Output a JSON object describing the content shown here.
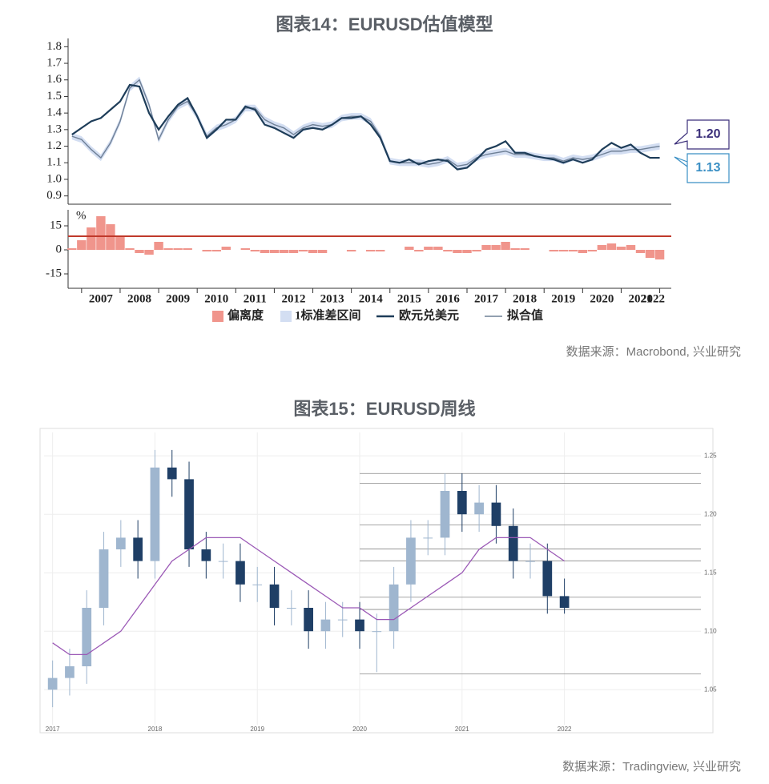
{
  "chart_data": [
    {
      "type": "line",
      "title": "图表14：EURUSD估值模型",
      "source": "数据来源：Macrobond, 兴业研究",
      "x": [
        2006.75,
        2007,
        2007.25,
        2007.5,
        2007.75,
        2008,
        2008.25,
        2008.5,
        2008.75,
        2009,
        2009.25,
        2009.5,
        2009.75,
        2010,
        2010.25,
        2010.5,
        2010.75,
        2011,
        2011.25,
        2011.5,
        2011.75,
        2012,
        2012.25,
        2012.5,
        2012.75,
        2013,
        2013.25,
        2013.5,
        2013.75,
        2014,
        2014.25,
        2014.5,
        2014.75,
        2015,
        2015.25,
        2015.5,
        2015.75,
        2016,
        2016.25,
        2016.5,
        2016.75,
        2017,
        2017.25,
        2017.5,
        2017.75,
        2018,
        2018.25,
        2018.5,
        2018.75,
        2019,
        2019.25,
        2019.5,
        2019.75,
        2020,
        2020.25,
        2020.5,
        2020.75,
        2021,
        2021.25,
        2021.5,
        2021.75,
        2022
      ],
      "xlim": [
        2006.65,
        2022.3
      ],
      "xticks": [
        2007,
        2008,
        2009,
        2010,
        2011,
        2012,
        2013,
        2014,
        2015,
        2016,
        2017,
        2018,
        2019,
        2020,
        2021,
        2022
      ],
      "ylim": [
        0.85,
        1.85
      ],
      "yticks": [
        0.9,
        {
          "value": 1,
          "label": "1.0"
        },
        1.1,
        1.2,
        1.3,
        1.4,
        1.5,
        1.6,
        1.7,
        1.8
      ],
      "band": {
        "name": "1标准差区间",
        "color": "#d3def2",
        "width": 0.02
      },
      "series": [
        {
          "name": "欧元兑美元",
          "color": "#1e3d59",
          "end_label": "1.13",
          "values": [
            1.27,
            1.31,
            1.35,
            1.37,
            1.42,
            1.47,
            1.57,
            1.56,
            1.4,
            1.3,
            1.38,
            1.45,
            1.49,
            1.38,
            1.25,
            1.3,
            1.36,
            1.36,
            1.44,
            1.42,
            1.33,
            1.31,
            1.28,
            1.25,
            1.3,
            1.31,
            1.3,
            1.33,
            1.37,
            1.37,
            1.38,
            1.33,
            1.25,
            1.11,
            1.1,
            1.12,
            1.09,
            1.11,
            1.12,
            1.11,
            1.06,
            1.07,
            1.12,
            1.18,
            1.2,
            1.23,
            1.16,
            1.16,
            1.14,
            1.13,
            1.12,
            1.1,
            1.12,
            1.1,
            1.12,
            1.18,
            1.22,
            1.19,
            1.21,
            1.16,
            1.13,
            1.13
          ]
        },
        {
          "name": "拟合值",
          "color": "#6f8096",
          "end_label": "1.20",
          "values": [
            1.26,
            1.24,
            1.18,
            1.13,
            1.22,
            1.35,
            1.55,
            1.6,
            1.45,
            1.24,
            1.36,
            1.44,
            1.47,
            1.38,
            1.26,
            1.31,
            1.33,
            1.36,
            1.43,
            1.43,
            1.36,
            1.33,
            1.31,
            1.27,
            1.31,
            1.33,
            1.32,
            1.33,
            1.37,
            1.38,
            1.38,
            1.35,
            1.26,
            1.11,
            1.1,
            1.1,
            1.1,
            1.09,
            1.1,
            1.12,
            1.08,
            1.09,
            1.13,
            1.15,
            1.16,
            1.17,
            1.15,
            1.15,
            1.14,
            1.13,
            1.13,
            1.11,
            1.13,
            1.12,
            1.13,
            1.15,
            1.17,
            1.17,
            1.18,
            1.18,
            1.19,
            1.2
          ]
        }
      ]
    },
    {
      "type": "bar",
      "name": "偏离度",
      "color": "#f0958c",
      "y_label": "%",
      "ylim": [
        -20,
        25
      ],
      "yticks": [
        -15,
        0,
        15
      ],
      "threshold": 8.5,
      "threshold_color": "#c0392b",
      "values": [
        1,
        6,
        14,
        21,
        16,
        9,
        1,
        -2,
        -3,
        5,
        1,
        1,
        1,
        0,
        -1,
        -1,
        2,
        0,
        1,
        -1,
        -2,
        -2,
        -2,
        -2,
        -1,
        -2,
        -2,
        0,
        0,
        -1,
        0,
        -1,
        -1,
        0,
        0,
        2,
        -1,
        2,
        2,
        -1,
        -2,
        -2,
        -1,
        3,
        3,
        5,
        1,
        1,
        0,
        0,
        -1,
        -1,
        -1,
        -2,
        -1,
        3,
        4,
        2,
        3,
        -2,
        -5,
        -6
      ]
    },
    {
      "type": "candlestick",
      "title": "图表15：EURUSD周线",
      "source": "数据来源：Tradingview, 兴业研究",
      "categories": [
        "2017",
        null,
        null,
        null,
        null,
        null,
        "2018",
        null,
        null,
        null,
        null,
        null,
        "2019",
        null,
        null,
        null,
        null,
        null,
        "2020",
        null,
        null,
        null,
        null,
        null,
        "2021",
        null,
        null,
        null,
        null,
        null,
        "2022"
      ],
      "xlim": [
        -0.5,
        38
      ],
      "ylim": [
        1.02,
        1.27
      ],
      "yticks": [
        1.05,
        {
          "value": 1.1,
          "label": "1.10"
        },
        1.15,
        {
          "value": 1.2,
          "label": "1.20"
        },
        1.25
      ],
      "up_color": "#9fb6cf",
      "down_color": "#1f3f66",
      "open": [
        1.05,
        1.06,
        1.07,
        1.12,
        1.17,
        1.18,
        1.16,
        1.24,
        1.23,
        1.17,
        1.16,
        1.16,
        1.14,
        1.14,
        1.12,
        1.12,
        1.1,
        1.11,
        1.11,
        1.1,
        1.1,
        1.14,
        1.18,
        1.18,
        1.22,
        1.2,
        1.21,
        1.19,
        1.16,
        1.16,
        1.13
      ],
      "high": [
        1.075,
        1.085,
        1.135,
        1.185,
        1.195,
        1.195,
        1.255,
        1.255,
        1.245,
        1.185,
        1.175,
        1.175,
        1.155,
        1.155,
        1.135,
        1.135,
        1.125,
        1.125,
        1.125,
        1.115,
        1.155,
        1.195,
        1.195,
        1.235,
        1.235,
        1.225,
        1.225,
        1.205,
        1.175,
        1.175,
        1.145
      ],
      "low": [
        1.035,
        1.045,
        1.055,
        1.105,
        1.155,
        1.145,
        1.145,
        1.215,
        1.155,
        1.145,
        1.145,
        1.125,
        1.125,
        1.105,
        1.105,
        1.085,
        1.085,
        1.095,
        1.085,
        1.065,
        1.085,
        1.125,
        1.165,
        1.165,
        1.185,
        1.185,
        1.175,
        1.145,
        1.145,
        1.115,
        1.115
      ],
      "close": [
        1.06,
        1.07,
        1.12,
        1.17,
        1.18,
        1.16,
        1.24,
        1.23,
        1.17,
        1.16,
        1.16,
        1.14,
        1.14,
        1.12,
        1.12,
        1.1,
        1.11,
        1.11,
        1.1,
        1.1,
        1.14,
        1.18,
        1.18,
        1.22,
        1.2,
        1.21,
        1.19,
        1.16,
        1.16,
        1.13,
        1.12
      ],
      "ma": {
        "color": "#9b59b6",
        "values": [
          1.09,
          1.08,
          1.08,
          1.09,
          1.1,
          1.12,
          1.14,
          1.16,
          1.17,
          1.18,
          1.18,
          1.18,
          1.17,
          1.16,
          1.15,
          1.14,
          1.13,
          1.12,
          1.12,
          1.11,
          1.11,
          1.12,
          1.13,
          1.14,
          1.15,
          1.17,
          1.18,
          1.18,
          1.18,
          1.17,
          1.16
        ]
      },
      "levels": [
        1.2349,
        1.2266,
        1.1909,
        1.1703,
        1.1602,
        1.1291,
        1.1186,
        1.0636
      ],
      "level_color": "#888888"
    }
  ]
}
